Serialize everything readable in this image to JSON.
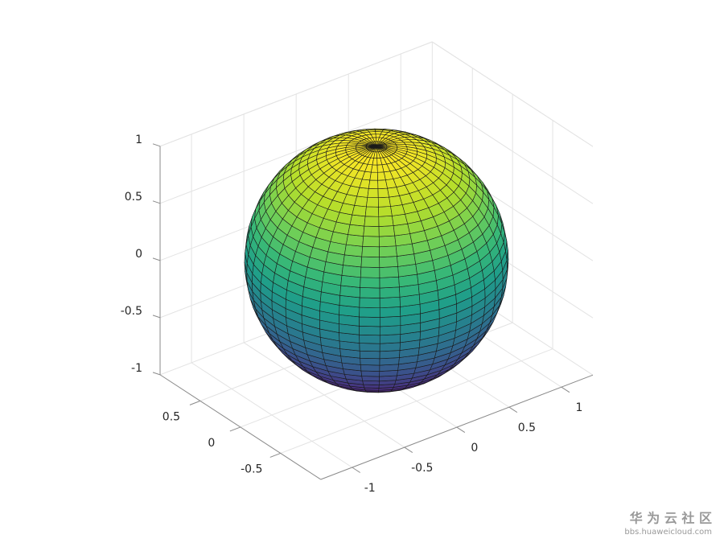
{
  "chart_data": {
    "type": "surface",
    "surface": "sphere",
    "mesh_divisions": 40,
    "xlim": [
      -1.3,
      1.3
    ],
    "ylim": [
      -1,
      1
    ],
    "zlim": [
      -1,
      1
    ],
    "xticks": [
      -1,
      -0.5,
      0,
      0.5,
      1
    ],
    "yticks": [
      -0.5,
      0,
      0.5
    ],
    "zticks": [
      -1,
      -0.5,
      0,
      0.5,
      1
    ],
    "view": [
      -37.5,
      30
    ],
    "grid": true,
    "colormap": [
      "#440154",
      "#482878",
      "#3e4989",
      "#31688e",
      "#26828e",
      "#1f9e89",
      "#35b779",
      "#6ece58",
      "#b5de2b",
      "#fde725"
    ],
    "edge_color": "#1a1a1a"
  },
  "watermark": {
    "title": "华 为 云 社 区",
    "url": "bbs.huaweicloud.com"
  }
}
